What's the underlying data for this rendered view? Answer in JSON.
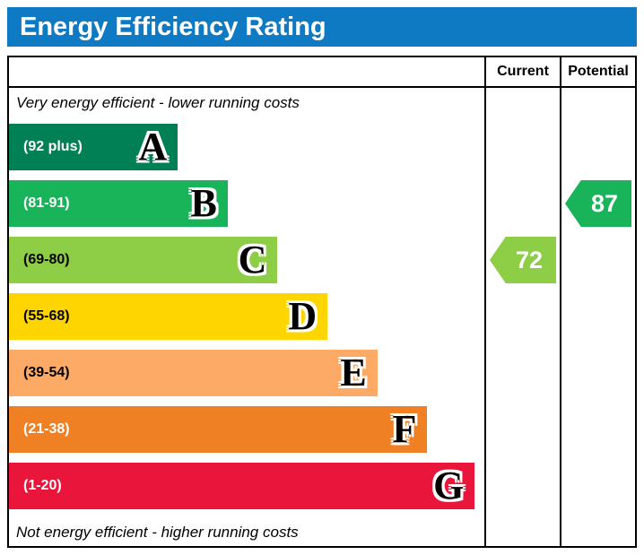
{
  "banner": {
    "title": "Energy Efficiency Rating"
  },
  "table_headers": {
    "current": "Current",
    "potential": "Potential"
  },
  "notes": {
    "top": "Very energy efficient - lower running costs",
    "bottom": "Not energy efficient - higher running costs"
  },
  "bands": [
    {
      "letter": "A",
      "range": "(92 plus)",
      "color": "#008054",
      "text_color": "#ffffff",
      "width_pct": 35.5
    },
    {
      "letter": "B",
      "range": "(81-91)",
      "color": "#19b459",
      "text_color": "#ffffff",
      "width_pct": 46
    },
    {
      "letter": "C",
      "range": "(69-80)",
      "color": "#8dce46",
      "text_color": "#000000",
      "width_pct": 56.5
    },
    {
      "letter": "D",
      "range": "(55-68)",
      "color": "#ffd500",
      "text_color": "#000000",
      "width_pct": 67
    },
    {
      "letter": "E",
      "range": "(39-54)",
      "color": "#fcaa65",
      "text_color": "#000000",
      "width_pct": 77.5
    },
    {
      "letter": "F",
      "range": "(21-38)",
      "color": "#ef8023",
      "text_color": "#ffffff",
      "width_pct": 88
    },
    {
      "letter": "G",
      "range": "(1-20)",
      "color": "#e9153b",
      "text_color": "#ffffff",
      "width_pct": 98
    }
  ],
  "ratings": {
    "current": {
      "value": "72",
      "band_index": 2,
      "band": "C",
      "color": "#8dce46"
    },
    "potential": {
      "value": "87",
      "band_index": 1,
      "band": "B",
      "color": "#19b459"
    }
  },
  "chart_data": {
    "type": "bar",
    "title": "Energy Efficiency Rating",
    "categories": [
      "A",
      "B",
      "C",
      "D",
      "E",
      "F",
      "G"
    ],
    "band_ranges": [
      "92 plus",
      "81-91",
      "69-80",
      "55-68",
      "39-54",
      "21-38",
      "1-20"
    ],
    "band_colors": [
      "#008054",
      "#19b459",
      "#8dce46",
      "#ffd500",
      "#fcaa65",
      "#ef8023",
      "#e9153b"
    ],
    "series": [
      {
        "name": "Current",
        "value": 72,
        "band": "C"
      },
      {
        "name": "Potential",
        "value": 87,
        "band": "B"
      }
    ],
    "value_range": [
      1,
      100
    ],
    "top_note": "Very energy efficient - lower running costs",
    "bottom_note": "Not energy efficient - higher running costs",
    "legend_position": "top-right-columns",
    "grid": false
  }
}
